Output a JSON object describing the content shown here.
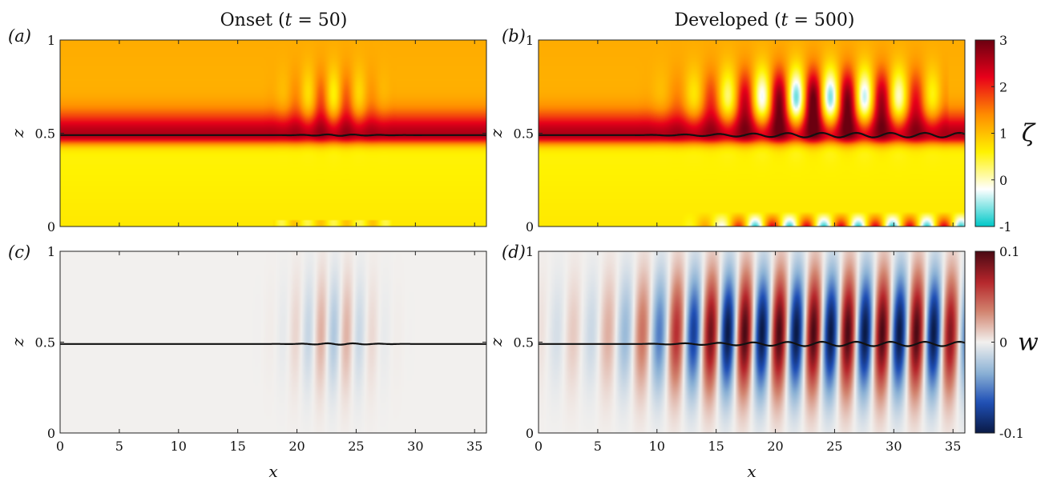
{
  "titles": {
    "left": "Onset (t = 50)",
    "right": "Developed (t = 500)"
  },
  "panel_labels": [
    "(a)",
    "(b)",
    "(c)",
    "(d)"
  ],
  "axis_labels": {
    "x": "x",
    "y": "z"
  },
  "colorbars": [
    {
      "symbol": "ζ",
      "ticks": [
        "3",
        "2",
        "1",
        "0",
        "-1"
      ],
      "range": [
        -1,
        3
      ],
      "colormap": [
        "#00c8c8",
        "#ffffff",
        "#fff200",
        "#ff8c00",
        "#e8001a",
        "#6b0010"
      ]
    },
    {
      "symbol": "w",
      "ticks": [
        "0.1",
        "0",
        "-0.1"
      ],
      "range": [
        -0.1,
        0.1
      ],
      "colormap": [
        "#0a1a45",
        "#1f4fb5",
        "#8db3d6",
        "#f2f0ee",
        "#d28570",
        "#b5252a",
        "#4a0a14"
      ]
    }
  ],
  "chart_data": [
    {
      "panel": "(a)",
      "type": "heatmap",
      "variable": "ζ",
      "xlim": [
        0,
        36
      ],
      "ylim": [
        0,
        1
      ],
      "xticks": [
        "0",
        "5",
        "10",
        "15",
        "20",
        "25",
        "30",
        "35"
      ],
      "yticks": [
        "0",
        "0.5",
        "1"
      ],
      "interface_z": 0.49,
      "interface_wave_amplitude": 0.004,
      "wave_region_x": [
        17,
        29
      ],
      "perturbation_max_x": 23,
      "wavelength": 2.2
    },
    {
      "panel": "(b)",
      "type": "heatmap",
      "variable": "ζ",
      "xlim": [
        0,
        36
      ],
      "ylim": [
        0,
        1
      ],
      "xticks": [
        "0",
        "5",
        "10",
        "15",
        "20",
        "25",
        "30",
        "35"
      ],
      "yticks": [
        "0",
        "0.5",
        "1"
      ],
      "interface_z": 0.49,
      "interface_wave_amplitude": 0.012,
      "wave_region_x": [
        8,
        36
      ],
      "perturbation_max_x": 30,
      "wavelength": 2.9
    },
    {
      "panel": "(c)",
      "type": "heatmap",
      "variable": "w",
      "xlim": [
        0,
        36
      ],
      "ylim": [
        0,
        1
      ],
      "xticks": [
        "0",
        "5",
        "10",
        "15",
        "20",
        "25",
        "30",
        "35"
      ],
      "yticks": [
        "0",
        "0.5",
        "1"
      ],
      "interface_z": 0.49,
      "interface_wave_amplitude": 0.004,
      "wave_region_x": [
        17,
        29
      ],
      "perturbation_max_x": 23,
      "wavelength": 2.2
    },
    {
      "panel": "(d)",
      "type": "heatmap",
      "variable": "w",
      "xlim": [
        0,
        36
      ],
      "ylim": [
        0,
        1
      ],
      "xticks": [
        "0",
        "5",
        "10",
        "15",
        "20",
        "25",
        "30",
        "35"
      ],
      "yticks": [
        "0",
        "0.5",
        "1"
      ],
      "interface_z": 0.49,
      "interface_wave_amplitude": 0.012,
      "wave_region_x": [
        8,
        36
      ],
      "perturbation_max_x": 30,
      "wavelength": 2.9
    }
  ]
}
